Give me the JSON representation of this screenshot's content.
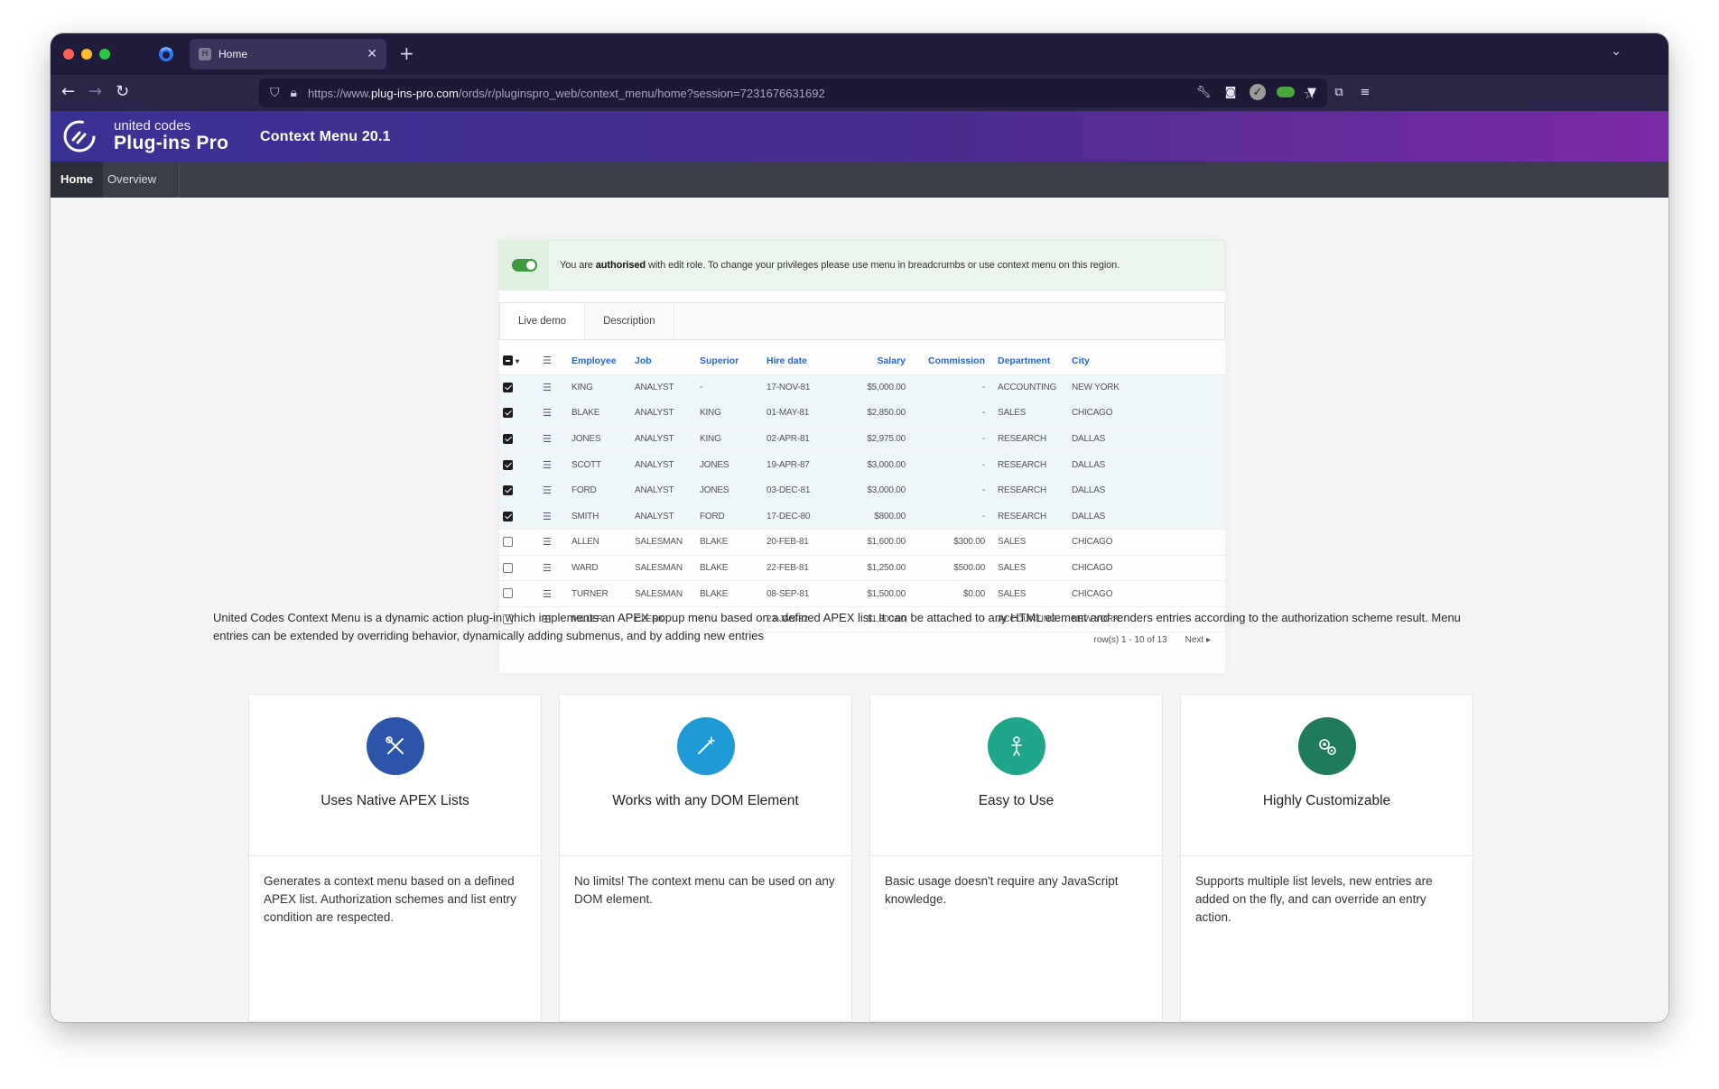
{
  "browser": {
    "tab_title": "Home",
    "tab_favicon": "H",
    "url_prefix": "https://www.",
    "url_host": "plug-ins-pro.com",
    "url_path": "/ords/r/pluginspro_web/context_menu/home?session=7231676631692"
  },
  "app": {
    "brand_line1": "united codes",
    "brand_line2": "Plug-ins Pro",
    "title": "Context Menu 20.1",
    "menu": [
      {
        "label": "Home"
      },
      {
        "label": "Overview"
      }
    ]
  },
  "demo": {
    "alert_prefix": "You are ",
    "alert_bold": "authorised",
    "alert_suffix": " with edit role. To change your privileges please use menu in breadcrumbs or use context menu on this region.",
    "tabs": [
      "Live demo",
      "Description"
    ],
    "columns": [
      "Employee",
      "Job",
      "Superior",
      "Hire date",
      "Salary",
      "Commission",
      "Department",
      "City"
    ],
    "rows": [
      {
        "checked": true,
        "cells": [
          "KING",
          "ANALYST",
          "-",
          "17-NOV-81",
          "$5,000.00",
          "-",
          "ACCOUNTING",
          "NEW YORK"
        ]
      },
      {
        "checked": true,
        "cells": [
          "BLAKE",
          "ANALYST",
          "KING",
          "01-MAY-81",
          "$2,850.00",
          "-",
          "SALES",
          "CHICAGO"
        ]
      },
      {
        "checked": true,
        "cells": [
          "JONES",
          "ANALYST",
          "KING",
          "02-APR-81",
          "$2,975.00",
          "-",
          "RESEARCH",
          "DALLAS"
        ]
      },
      {
        "checked": true,
        "cells": [
          "SCOTT",
          "ANALYST",
          "JONES",
          "19-APR-87",
          "$3,000.00",
          "-",
          "RESEARCH",
          "DALLAS"
        ]
      },
      {
        "checked": true,
        "cells": [
          "FORD",
          "ANALYST",
          "JONES",
          "03-DEC-81",
          "$3,000.00",
          "-",
          "RESEARCH",
          "DALLAS"
        ]
      },
      {
        "checked": true,
        "cells": [
          "SMITH",
          "ANALYST",
          "FORD",
          "17-DEC-80",
          "$800.00",
          "-",
          "RESEARCH",
          "DALLAS"
        ]
      },
      {
        "checked": false,
        "cells": [
          "ALLEN",
          "SALESMAN",
          "BLAKE",
          "20-FEB-81",
          "$1,600.00",
          "$300.00",
          "SALES",
          "CHICAGO"
        ]
      },
      {
        "checked": false,
        "cells": [
          "WARD",
          "SALESMAN",
          "BLAKE",
          "22-FEB-81",
          "$1,250.00",
          "$500.00",
          "SALES",
          "CHICAGO"
        ]
      },
      {
        "checked": false,
        "cells": [
          "TURNER",
          "SALESMAN",
          "BLAKE",
          "08-SEP-81",
          "$1,500.00",
          "$0.00",
          "SALES",
          "CHICAGO"
        ]
      },
      {
        "checked": false,
        "cells": [
          "MILLER",
          "CLERK",
          "-",
          "23-JAN-82",
          "$1,300.00",
          "-",
          "ACCOUNTING",
          "NEW YORK"
        ]
      }
    ],
    "pager_text": "row(s) 1 - 10 of 13",
    "pager_next": "Next ▸"
  },
  "description": "United Codes Context Menu is a dynamic action plug-in which implements an APEX popup menu based on a defined APEX list. It can be attached to any HTML element and renders entries according to the authorization scheme result. Menu entries can be extended by overriding behavior, dynamically adding submenus, and by adding new entries",
  "features": [
    {
      "icon": "tools-icon",
      "color": "#2a55a8",
      "title": "Uses Native APEX Lists",
      "body": "Generates a context menu based on a defined APEX list. Authorization schemes and list entry condition are respected."
    },
    {
      "icon": "magic-wand-icon",
      "color": "#1e9ad6",
      "title": "Works with any DOM Element",
      "body": "No limits! The context menu can be used on any DOM element."
    },
    {
      "icon": "person-icon",
      "color": "#1fa58a",
      "title": "Easy to Use",
      "body": "Basic usage doesn't require any JavaScript knowledge."
    },
    {
      "icon": "gears-icon",
      "color": "#1f7a5e",
      "title": "Highly Customizable",
      "body": "Supports multiple list levels, new entries are added on the fly, and can override an entry action."
    }
  ]
}
